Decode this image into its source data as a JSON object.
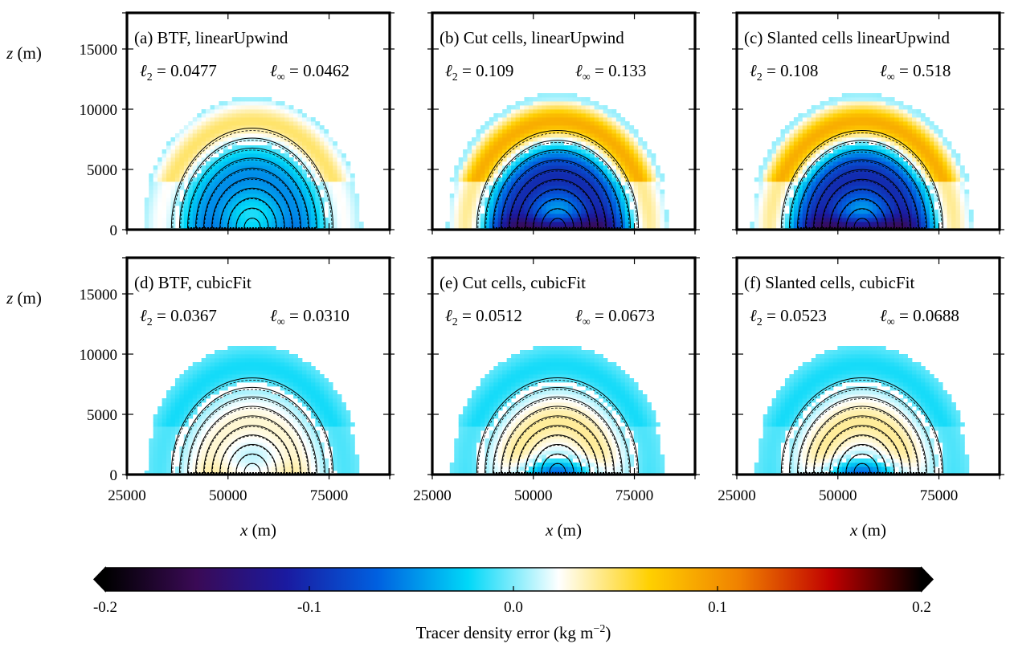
{
  "chart_data": {
    "type": "heatmap",
    "layout": "2x3",
    "shared_axes": {
      "xlabel_var": "x",
      "xlabel_unit": "(m)",
      "ylabel_var": "z",
      "ylabel_unit": "(m)",
      "xlim": [
        25000,
        90000
      ],
      "ylim": [
        0,
        18000
      ],
      "xticks": [
        25000,
        50000,
        75000
      ],
      "yticks": [
        0,
        5000,
        10000,
        15000
      ],
      "grid": false
    },
    "panels": [
      {
        "label": "(a) BTF, linearUpwind",
        "l2": "0.0477",
        "linf": "0.0462",
        "row": 0,
        "col": 0,
        "plume_peak": -0.05,
        "cap_peak": 0.05,
        "base_peak": -0.02,
        "contour_top": 8300
      },
      {
        "label": "(b) Cut cells, linearUpwind",
        "l2": "0.109",
        "linf": "0.133",
        "row": 0,
        "col": 1,
        "plume_peak": -0.1,
        "cap_peak": 0.09,
        "base_peak": -0.13,
        "contour_top": 8100
      },
      {
        "label": "(c) Slanted cells linearUpwind",
        "l2": "0.108",
        "linf": "0.518",
        "row": 0,
        "col": 2,
        "plume_peak": -0.1,
        "cap_peak": 0.09,
        "base_peak": -0.13,
        "contour_top": 8100
      },
      {
        "label": "(d) BTF, cubicFit",
        "l2": "0.0367",
        "linf": "0.0310",
        "row": 1,
        "col": 0,
        "plume_peak": 0.03,
        "cap_peak": -0.02,
        "base_peak": 0.02,
        "contour_top": 7900
      },
      {
        "label": "(e) Cut cells, cubicFit",
        "l2": "0.0512",
        "linf": "0.0673",
        "row": 1,
        "col": 1,
        "plume_peak": 0.04,
        "cap_peak": -0.02,
        "base_peak": -0.07,
        "contour_top": 7900
      },
      {
        "label": "(f) Slanted cells, cubicFit",
        "l2": "0.0523",
        "linf": "0.0688",
        "row": 1,
        "col": 2,
        "plume_peak": 0.04,
        "cap_peak": -0.02,
        "base_peak": -0.07,
        "contour_top": 7900
      }
    ],
    "colorbar": {
      "label": "Tracer density error (kg m−2)",
      "label_main": "Tracer density error (kg m",
      "label_exp": "−2",
      "label_end": ")",
      "min": -0.2,
      "max": 0.2,
      "ticks": [
        "-0.2",
        "-0.1",
        "0.0",
        "0.1",
        "0.2"
      ],
      "extend": "both",
      "colormap": [
        "#000000",
        "#3a0a55",
        "#1a1aa0",
        "#0060e0",
        "#00d8f8",
        "#ffffff",
        "#ffd000",
        "#f08000",
        "#c00000",
        "#000000"
      ]
    }
  }
}
